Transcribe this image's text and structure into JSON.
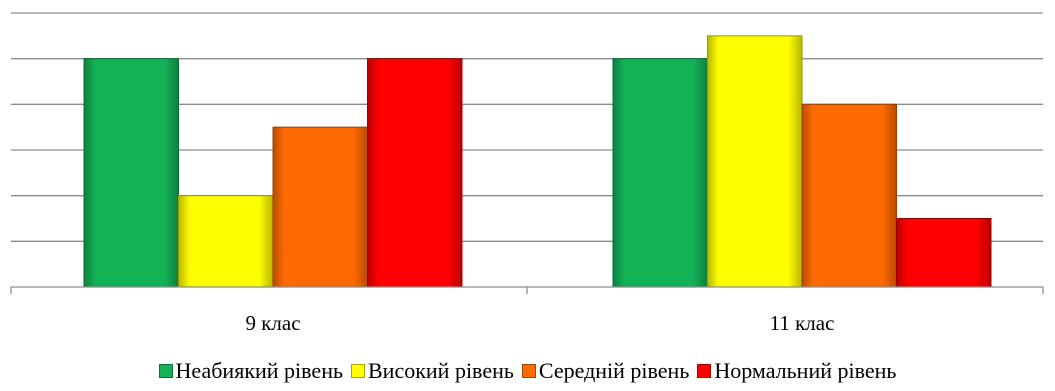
{
  "chart_data": {
    "type": "bar",
    "categories": [
      "9 клас",
      "11 клас"
    ],
    "series": [
      {
        "name": "Неабиякий рівень",
        "color": "#13B257",
        "values": [
          5,
          5
        ]
      },
      {
        "name": "Високий рівень",
        "color": "#FFFF00",
        "values": [
          2,
          5.5
        ]
      },
      {
        "name": "Середній рівень",
        "color": "#FF6A00",
        "values": [
          3.5,
          4
        ]
      },
      {
        "name": "Нормальний рівень",
        "color": "#FF0000",
        "values": [
          5,
          1.5
        ]
      }
    ],
    "ylim": [
      0,
      6
    ],
    "ytick_step": 1,
    "y_tick_labels_shown": false,
    "grid": true,
    "legend_position": "bottom",
    "title": "",
    "xlabel": "",
    "ylabel": ""
  }
}
